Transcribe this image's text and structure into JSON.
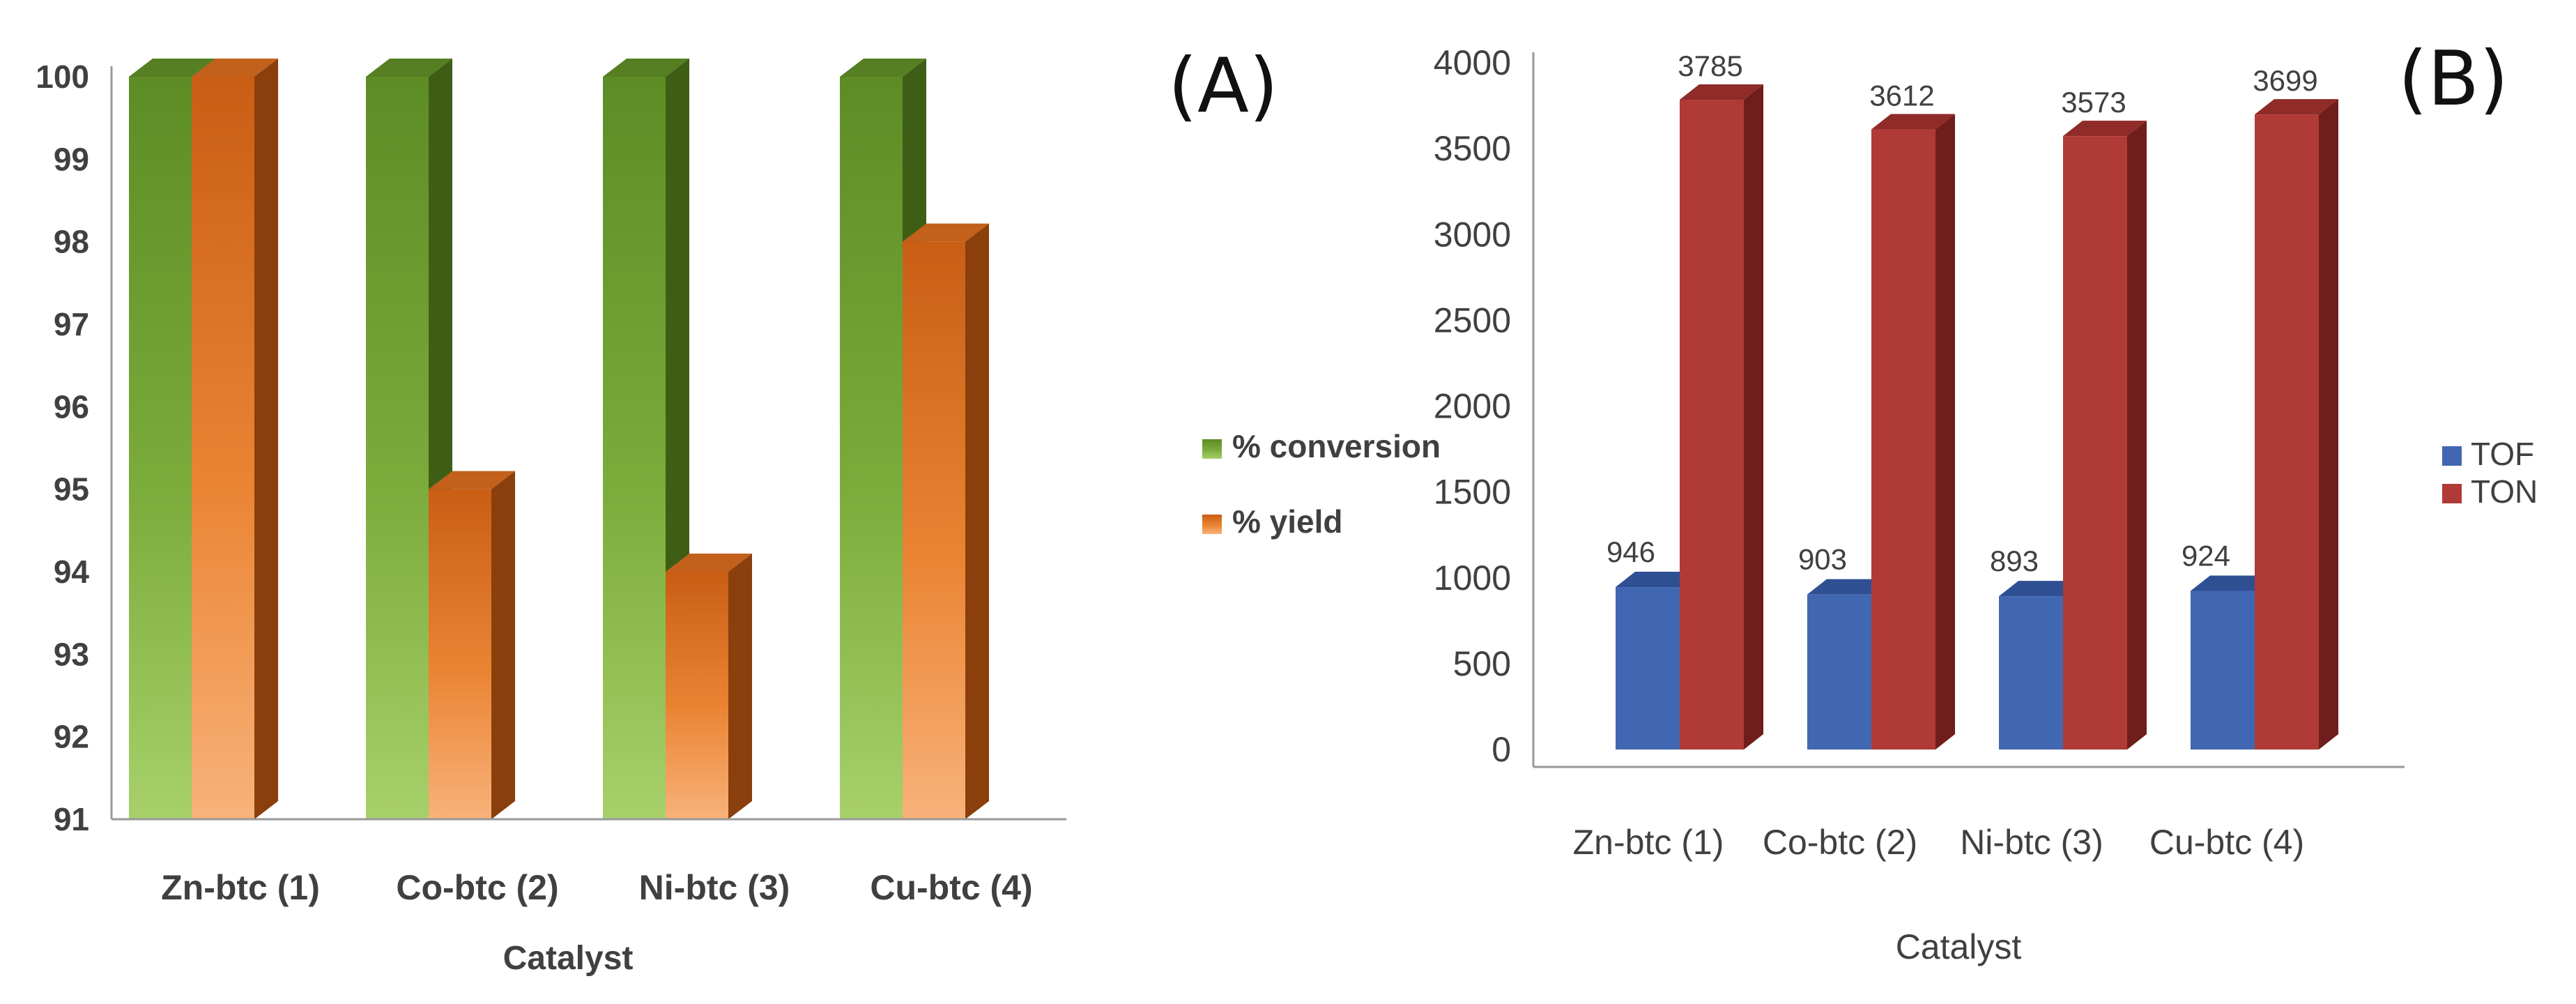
{
  "chart_data": [
    {
      "type": "bar",
      "panel_label": "(A)",
      "xlabel": "Catalyst",
      "ylabel": "",
      "ylim": [
        91,
        100
      ],
      "yticks": [
        "91",
        "92",
        "93",
        "94",
        "95",
        "96",
        "97",
        "98",
        "99",
        "100"
      ],
      "categories": [
        "Zn-btc (1)",
        "Co-btc (2)",
        "Ni-btc (3)",
        "Cu-btc (4)"
      ],
      "series": [
        {
          "name": "% conversion",
          "values": [
            100,
            100,
            100,
            100
          ]
        },
        {
          "name": "% yield",
          "values": [
            100,
            95,
            94,
            98
          ]
        }
      ],
      "legend": "right",
      "grid": false
    },
    {
      "type": "bar",
      "panel_label": "(B)",
      "xlabel": "Catalyst",
      "ylabel": "",
      "ylim": [
        0,
        4000
      ],
      "yticks": [
        "0",
        "500",
        "1000",
        "1500",
        "2000",
        "2500",
        "3000",
        "3500",
        "4000"
      ],
      "categories": [
        "Zn-btc (1)",
        "Co-btc (2)",
        "Ni-btc (3)",
        "Cu-btc (4)"
      ],
      "series": [
        {
          "name": "TOF",
          "values": [
            946,
            903,
            893,
            924
          ],
          "labels": [
            "946",
            "903",
            "893",
            "924"
          ]
        },
        {
          "name": "TON",
          "values": [
            3785,
            3612,
            3573,
            3699
          ],
          "labels": [
            "3785",
            "3612",
            "3573",
            "3699"
          ]
        }
      ],
      "legend": "right",
      "grid": false
    }
  ],
  "colors": {
    "conversion": "#6b9a2e",
    "yield": "#e07a26",
    "tof": "#4267b2",
    "ton": "#b03a36",
    "axis": "#999999",
    "text": "#404040"
  }
}
